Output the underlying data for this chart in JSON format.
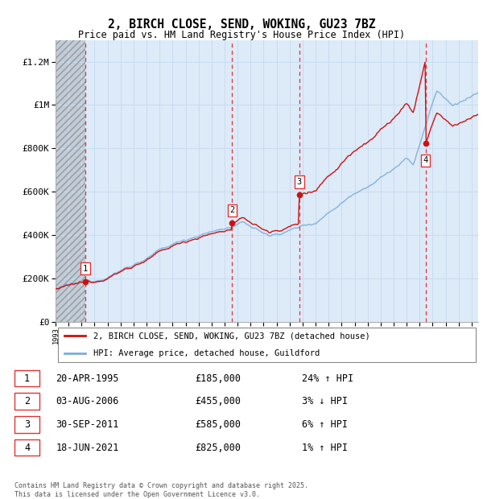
{
  "title": "2, BIRCH CLOSE, SEND, WOKING, GU23 7BZ",
  "subtitle": "Price paid vs. HM Land Registry's House Price Index (HPI)",
  "ylim": [
    0,
    1300000
  ],
  "yticks": [
    0,
    200000,
    400000,
    600000,
    800000,
    1000000,
    1200000
  ],
  "ytick_labels": [
    "£0",
    "£200K",
    "£400K",
    "£600K",
    "£800K",
    "£1M",
    "£1.2M"
  ],
  "sales": [
    {
      "num": 1,
      "date_str": "20-APR-1995",
      "year": 1995.29,
      "price": 185000,
      "pct": "24%",
      "dir": "↑"
    },
    {
      "num": 2,
      "date_str": "03-AUG-2006",
      "year": 2006.58,
      "price": 455000,
      "pct": "3%",
      "dir": "↓"
    },
    {
      "num": 3,
      "date_str": "30-SEP-2011",
      "year": 2011.75,
      "price": 585000,
      "pct": "6%",
      "dir": "↑"
    },
    {
      "num": 4,
      "date_str": "18-JUN-2021",
      "year": 2021.46,
      "price": 825000,
      "pct": "1%",
      "dir": "↑"
    }
  ],
  "hpi_color": "#7aaddc",
  "price_color": "#cc1111",
  "vline_color": "#dd3333",
  "grid_color": "#c8dcf0",
  "background_plot": "#ddeaf8",
  "legend_label_price": "2, BIRCH CLOSE, SEND, WOKING, GU23 7BZ (detached house)",
  "legend_label_hpi": "HPI: Average price, detached house, Guildford",
  "footer": "Contains HM Land Registry data © Crown copyright and database right 2025.\nThis data is licensed under the Open Government Licence v3.0.",
  "xmin": 1993,
  "xmax": 2025.5
}
